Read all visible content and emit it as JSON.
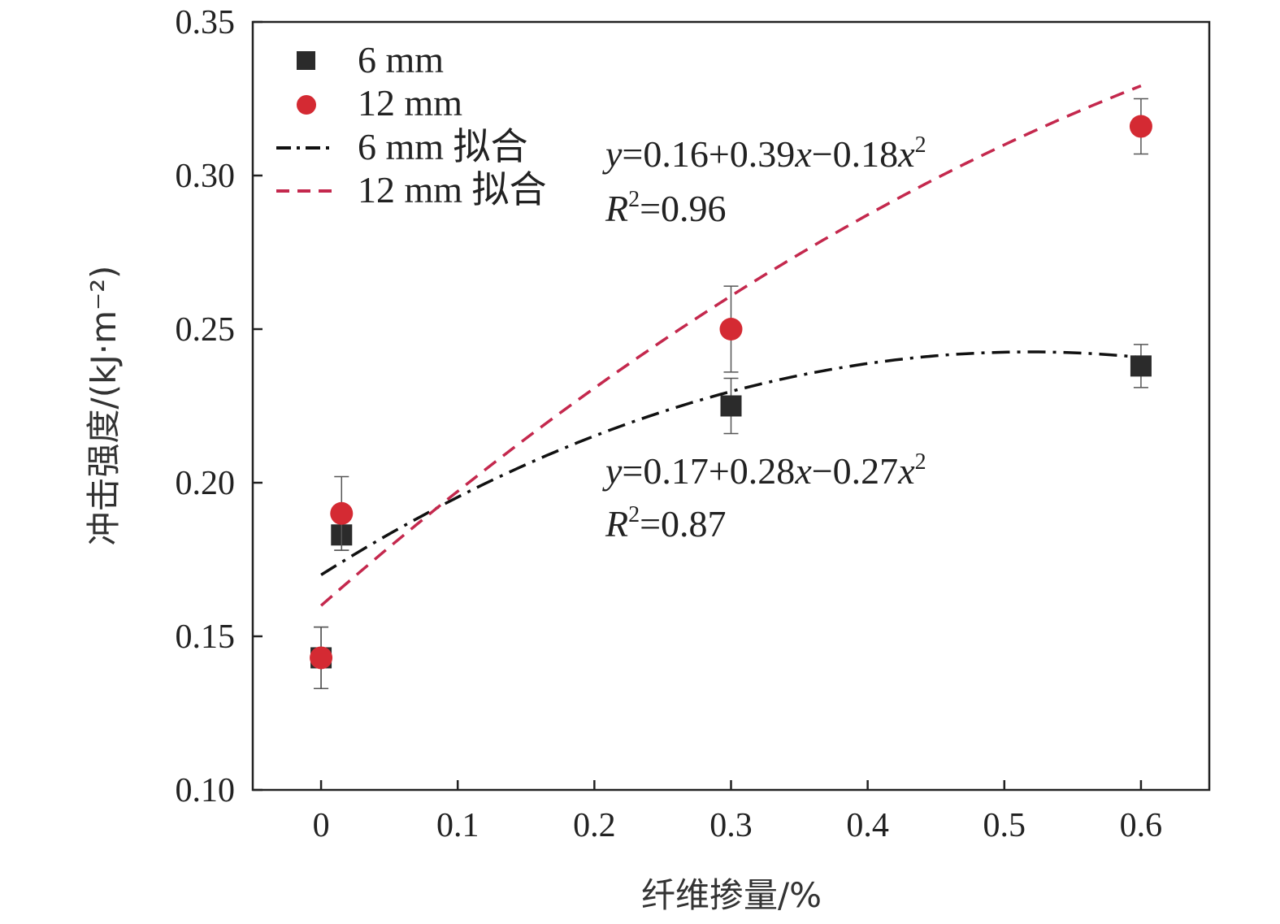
{
  "chart_data": {
    "type": "scatter",
    "xlabel": "纤维掺量/%",
    "ylabel": "冲击强度/(kJ·m⁻²)",
    "xlim": [
      -0.05,
      0.65
    ],
    "ylim": [
      0.1,
      0.35
    ],
    "x_ticks": [
      0,
      0.1,
      0.2,
      0.3,
      0.4,
      0.5,
      0.6
    ],
    "x_tick_labels": [
      "0",
      "0.1",
      "0.2",
      "0.3",
      "0.4",
      "0.5",
      "0.6"
    ],
    "y_ticks": [
      0.1,
      0.15,
      0.2,
      0.25,
      0.3,
      0.35
    ],
    "y_tick_labels": [
      "0.10",
      "0.15",
      "0.20",
      "0.25",
      "0.30",
      "0.35"
    ],
    "grid": false,
    "legend_position": "top-left",
    "series": [
      {
        "name": "6 mm",
        "marker": "square",
        "color": "#2b2b2b",
        "points": [
          {
            "x": 0,
            "y": 0.143,
            "err": 0.01
          },
          {
            "x": 0.015,
            "y": 0.183,
            "err": 0.005
          },
          {
            "x": 0.3,
            "y": 0.225,
            "err": 0.009
          },
          {
            "x": 0.6,
            "y": 0.238,
            "err": 0.007
          }
        ]
      },
      {
        "name": "12 mm",
        "marker": "circle",
        "color": "#d42a33",
        "points": [
          {
            "x": 0,
            "y": 0.143,
            "err": 0.01
          },
          {
            "x": 0.015,
            "y": 0.19,
            "err": 0.012
          },
          {
            "x": 0.3,
            "y": 0.25,
            "err": 0.014
          },
          {
            "x": 0.6,
            "y": 0.316,
            "err": 0.009
          }
        ]
      }
    ],
    "fits": [
      {
        "name": "6 mm 拟合",
        "style": "dash-dot",
        "color": "#111111",
        "coef": [
          0.17,
          0.28,
          -0.27
        ],
        "x_range": [
          0,
          0.6
        ],
        "equation": {
          "y": "y",
          "body": "=0.17+0.28",
          "x1": "x",
          "minus": "−0.27",
          "x2": "x",
          "sup": "2"
        },
        "r2": {
          "R": "R",
          "sup": "2",
          "val": "=0.87"
        }
      },
      {
        "name": "12 mm 拟合",
        "style": "dash",
        "color": "#c4284d",
        "coef": [
          0.16,
          0.39,
          -0.18
        ],
        "x_range": [
          0,
          0.6
        ],
        "equation": {
          "y": "y",
          "body": "=0.16+0.39",
          "x1": "x",
          "minus": "−0.18",
          "x2": "x",
          "sup": "2"
        },
        "r2": {
          "R": "R",
          "sup": "2",
          "val": "=0.96"
        }
      }
    ]
  }
}
